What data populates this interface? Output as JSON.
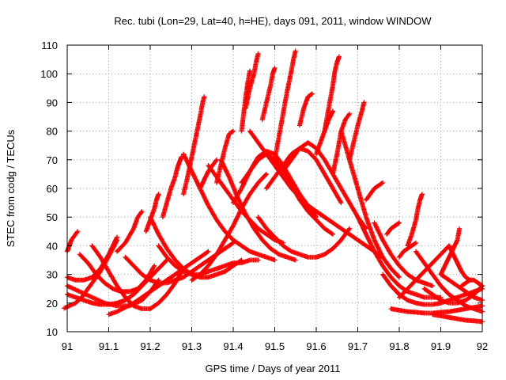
{
  "chart_data": {
    "type": "scatter",
    "title": "Rec. tubi (Lon=29, Lat=40, h=HE), days 091, 2011, window WINDOW",
    "xlabel": "GPS time / Days of year 2011",
    "ylabel": "STEC from codg / TECUs",
    "xlim": [
      91,
      92
    ],
    "ylim": [
      10,
      110
    ],
    "xticks": [
      91,
      91.1,
      91.2,
      91.3,
      91.4,
      91.5,
      91.6,
      91.7,
      91.8,
      91.9,
      92
    ],
    "xtick_labels": [
      "91",
      "91.1",
      "91.2",
      "91.3",
      "91.4",
      "91.5",
      "91.6",
      "91.7",
      "91.8",
      "91.9",
      "92"
    ],
    "yticks": [
      10,
      20,
      30,
      40,
      50,
      60,
      70,
      80,
      90,
      100,
      110
    ],
    "ytick_labels": [
      "10",
      "20",
      "30",
      "40",
      "50",
      "60",
      "70",
      "80",
      "90",
      "100",
      "110"
    ],
    "grid": true,
    "legend": "none",
    "marker": "plus",
    "color": "#ff0000",
    "series": [
      {
        "x": [
          90.99,
          91.005,
          91.02,
          91.035,
          91.05,
          91.065,
          91.08,
          91.095,
          91.11,
          91.12
        ],
        "y": [
          18,
          19,
          20,
          22,
          25,
          28,
          31,
          35,
          39,
          42
        ]
      },
      {
        "x": [
          91.0,
          91.005,
          91.01,
          91.015,
          91.02,
          91.025
        ],
        "y": [
          38,
          40,
          42,
          43,
          44,
          45
        ]
      },
      {
        "x": [
          91.0,
          91.02,
          91.04,
          91.06,
          91.08,
          91.1,
          91.12,
          91.14,
          91.16,
          91.18,
          91.2,
          91.22,
          91.24
        ],
        "y": [
          23,
          22,
          21,
          20,
          19.5,
          19.5,
          20,
          21,
          23,
          26,
          29,
          32,
          35
        ]
      },
      {
        "x": [
          91.0,
          91.02,
          91.04,
          91.06,
          91.08,
          91.1,
          91.12
        ],
        "y": [
          29,
          28,
          28,
          29,
          32,
          37,
          43
        ]
      },
      {
        "x": [
          91.03,
          91.05,
          91.07,
          91.09,
          91.11,
          91.13,
          91.15,
          91.17,
          91.19,
          91.21
        ],
        "y": [
          37,
          34,
          30,
          27,
          25,
          24,
          24,
          25,
          28,
          33
        ]
      },
      {
        "x": [
          91.0,
          91.03,
          91.06,
          91.09,
          91.12,
          91.15,
          91.18,
          91.2,
          91.22
        ],
        "y": [
          26,
          24,
          22,
          20,
          19,
          19,
          21,
          24,
          28
        ]
      },
      {
        "x": [
          91.06,
          91.08,
          91.1,
          91.12,
          91.14,
          91.16,
          91.18,
          91.2,
          91.22,
          91.24,
          91.26,
          91.28
        ],
        "y": [
          40,
          36,
          31,
          26,
          22,
          19,
          18,
          18,
          20,
          23,
          27,
          32
        ]
      },
      {
        "x": [
          91.1,
          91.12,
          91.14,
          91.16,
          91.18,
          91.2,
          91.22,
          91.24,
          91.26,
          91.28,
          91.3,
          91.32,
          91.34
        ],
        "y": [
          16,
          17,
          18.5,
          20,
          22,
          24,
          26,
          28,
          30,
          32,
          34,
          36,
          38
        ]
      },
      {
        "x": [
          91.12,
          91.14,
          91.16,
          91.17,
          91.18
        ],
        "y": [
          38,
          41,
          46,
          50,
          52
        ]
      },
      {
        "x": [
          91.14,
          91.16,
          91.18,
          91.2,
          91.22,
          91.24,
          91.26,
          91.28,
          91.3,
          91.32,
          91.34,
          91.36,
          91.38,
          91.4
        ],
        "y": [
          36,
          33,
          30,
          28,
          27,
          27,
          28,
          29,
          31,
          33,
          35,
          37,
          39,
          41
        ]
      },
      {
        "x": [
          91.19,
          91.2,
          91.21,
          91.215,
          91.22
        ],
        "y": [
          45,
          49,
          53,
          56,
          58
        ]
      },
      {
        "x": [
          91.2,
          91.22,
          91.24,
          91.26,
          91.28,
          91.3,
          91.32,
          91.34,
          91.36,
          91.38,
          91.4,
          91.42
        ],
        "y": [
          50,
          44,
          39,
          35,
          32,
          30,
          29,
          29,
          30,
          31,
          33,
          35
        ]
      },
      {
        "x": [
          91.23,
          91.24,
          91.25,
          91.26,
          91.265,
          91.27,
          91.275
        ],
        "y": [
          50,
          55,
          60,
          64,
          67,
          69,
          71
        ]
      },
      {
        "x": [
          91.22,
          91.24,
          91.26,
          91.28,
          91.3,
          91.32,
          91.34,
          91.36,
          91.38,
          91.4,
          91.42,
          91.44,
          91.46
        ],
        "y": [
          40,
          36,
          33,
          31,
          30,
          30,
          31,
          32,
          33,
          34,
          34,
          35,
          35
        ]
      },
      {
        "x": [
          91.28,
          91.29,
          91.3,
          91.31,
          91.32,
          91.325,
          91.33
        ],
        "y": [
          58,
          64,
          71,
          78,
          85,
          89,
          92
        ]
      },
      {
        "x": [
          91.28,
          91.3,
          91.32,
          91.34,
          91.36,
          91.38,
          91.4,
          91.42,
          91.44,
          91.46,
          91.48,
          91.5
        ],
        "y": [
          72,
          66,
          60,
          54,
          49,
          45,
          42,
          40,
          38,
          37,
          36,
          35
        ]
      },
      {
        "x": [
          91.3,
          91.32,
          91.34,
          91.36,
          91.38,
          91.4,
          91.42,
          91.44,
          91.46,
          91.48
        ],
        "y": [
          28,
          30,
          33,
          37,
          42,
          47,
          53,
          58,
          62,
          65
        ]
      },
      {
        "x": [
          91.32,
          91.33,
          91.34,
          91.35,
          91.36
        ],
        "y": [
          60,
          63,
          66,
          68,
          70
        ]
      },
      {
        "x": [
          91.34,
          91.36,
          91.38,
          91.4,
          91.42,
          91.44,
          91.46,
          91.48,
          91.5,
          91.52
        ],
        "y": [
          68,
          64,
          60,
          56,
          52,
          49,
          46,
          44,
          42,
          41
        ]
      },
      {
        "x": [
          91.36,
          91.37,
          91.38,
          91.39,
          91.4
        ],
        "y": [
          62,
          68,
          74,
          79,
          80
        ]
      },
      {
        "x": [
          91.37,
          91.39,
          91.41,
          91.43,
          91.45,
          91.47,
          91.49,
          91.51,
          91.53,
          91.55
        ],
        "y": [
          70,
          64,
          57,
          51,
          46,
          42,
          39,
          37,
          36,
          35
        ]
      },
      {
        "x": [
          91.42,
          91.425,
          91.43,
          91.435,
          91.44
        ],
        "y": [
          80,
          86,
          92,
          97,
          101
        ]
      },
      {
        "x": [
          91.4,
          91.42,
          91.44,
          91.46,
          91.48,
          91.5,
          91.52,
          91.54,
          91.56,
          91.58,
          91.6
        ],
        "y": [
          55,
          60,
          66,
          71,
          73,
          72,
          68,
          63,
          58,
          54,
          50
        ]
      },
      {
        "x": [
          91.43,
          91.44,
          91.45,
          91.455,
          91.46
        ],
        "y": [
          88,
          95,
          100,
          104,
          107
        ]
      },
      {
        "x": [
          91.42,
          91.44,
          91.46,
          91.48,
          91.5,
          91.52,
          91.54,
          91.56,
          91.58,
          91.6,
          91.62,
          91.64
        ],
        "y": [
          62,
          66,
          70,
          72,
          70,
          66,
          61,
          56,
          52,
          49,
          46,
          44
        ]
      },
      {
        "x": [
          91.44,
          91.46,
          91.48,
          91.5,
          91.52,
          91.54,
          91.56,
          91.58,
          91.6,
          91.62
        ],
        "y": [
          80,
          76,
          72,
          68,
          64,
          60,
          57,
          54,
          52,
          50
        ]
      },
      {
        "x": [
          91.47,
          91.48,
          91.49,
          91.495,
          91.5
        ],
        "y": [
          84,
          90,
          96,
          100,
          102
        ]
      },
      {
        "x": [
          91.46,
          91.48,
          91.5,
          91.52,
          91.54,
          91.56,
          91.58,
          91.6,
          91.62,
          91.64,
          91.66,
          91.68
        ],
        "y": [
          50,
          46,
          43,
          40,
          38,
          37,
          36,
          36,
          37,
          39,
          42,
          46
        ]
      },
      {
        "x": [
          91.5,
          91.51,
          91.52,
          91.53,
          91.54,
          91.545,
          91.55
        ],
        "y": [
          70,
          78,
          86,
          94,
          101,
          105,
          108
        ]
      },
      {
        "x": [
          91.48,
          91.5,
          91.52,
          91.54,
          91.56,
          91.58,
          91.6,
          91.62,
          91.64,
          91.66
        ],
        "y": [
          60,
          64,
          68,
          72,
          74,
          73,
          70,
          65,
          60,
          55
        ]
      },
      {
        "x": [
          91.56,
          91.57,
          91.58,
          91.59
        ],
        "y": [
          82,
          88,
          92,
          93
        ]
      },
      {
        "x": [
          91.52,
          91.54,
          91.56,
          91.58,
          91.6,
          91.62,
          91.64,
          91.66,
          91.68,
          91.7,
          91.72
        ],
        "y": [
          66,
          70,
          74,
          76,
          74,
          70,
          65,
          60,
          55,
          50,
          46
        ]
      },
      {
        "x": [
          91.6,
          91.61,
          91.62,
          91.63,
          91.64
        ],
        "y": [
          72,
          76,
          80,
          84,
          87
        ]
      },
      {
        "x": [
          91.56,
          91.58,
          91.6,
          91.62,
          91.64,
          91.66,
          91.68,
          91.7,
          91.72,
          91.74,
          91.76
        ],
        "y": [
          56,
          54,
          52,
          50,
          48,
          46,
          44,
          42,
          40,
          38,
          36
        ]
      },
      {
        "x": [
          91.62,
          91.63,
          91.64,
          91.645,
          91.65,
          91.655
        ],
        "y": [
          80,
          88,
          96,
          101,
          104,
          106
        ]
      },
      {
        "x": [
          91.64,
          91.65,
          91.66,
          91.67,
          91.68
        ],
        "y": [
          65,
          72,
          80,
          84,
          86
        ]
      },
      {
        "x": [
          91.68,
          91.69,
          91.7,
          91.71,
          91.715
        ],
        "y": [
          70,
          76,
          82,
          87,
          90
        ]
      },
      {
        "x": [
          91.66,
          91.68,
          91.7,
          91.72,
          91.74,
          91.76,
          91.78,
          91.8
        ],
        "y": [
          80,
          70,
          60,
          50,
          42,
          36,
          32,
          29
        ]
      },
      {
        "x": [
          91.72,
          91.73,
          91.74,
          91.75,
          91.76
        ],
        "y": [
          56,
          58,
          60,
          61,
          62
        ]
      },
      {
        "x": [
          91.7,
          91.72,
          91.74,
          91.76,
          91.78,
          91.8,
          91.82,
          91.84,
          91.86,
          91.88,
          91.9
        ],
        "y": [
          50,
          44,
          38,
          33,
          29,
          26,
          24,
          23,
          22,
          22,
          22
        ]
      },
      {
        "x": [
          91.74,
          91.76,
          91.78,
          91.8,
          91.82,
          91.84,
          91.86,
          91.88
        ],
        "y": [
          48,
          42,
          37,
          33,
          30,
          28,
          27,
          26
        ]
      },
      {
        "x": [
          91.77,
          91.78,
          91.79,
          91.8
        ],
        "y": [
          44,
          46,
          47,
          48
        ]
      },
      {
        "x": [
          91.76,
          91.78,
          91.8,
          91.82,
          91.84,
          91.86,
          91.88,
          91.9,
          91.92,
          91.94,
          91.96,
          91.98,
          92.0
        ],
        "y": [
          30,
          26,
          23,
          21,
          20,
          19.5,
          19.5,
          20,
          21,
          22,
          23,
          24,
          25
        ]
      },
      {
        "x": [
          91.8,
          91.81,
          91.82,
          91.83,
          91.84
        ],
        "y": [
          36,
          38,
          39,
          40,
          41
        ]
      },
      {
        "x": [
          91.82,
          91.83,
          91.84,
          91.845,
          91.85,
          91.855
        ],
        "y": [
          40,
          44,
          49,
          53,
          56,
          58
        ]
      },
      {
        "x": [
          91.78,
          91.8,
          91.82,
          91.84,
          91.86,
          91.88,
          91.9,
          91.92,
          91.94,
          91.96,
          91.98,
          92.0
        ],
        "y": [
          18,
          17.5,
          17,
          16.8,
          16.5,
          16.5,
          16.8,
          17,
          17.5,
          18,
          18.5,
          19
        ]
      },
      {
        "x": [
          91.8,
          91.82,
          91.84,
          91.86,
          91.88,
          91.9,
          91.92
        ],
        "y": [
          22,
          25,
          28,
          31,
          34,
          37,
          40
        ]
      },
      {
        "x": [
          91.84,
          91.86,
          91.88,
          91.9,
          91.92,
          91.94,
          91.96,
          91.98,
          92.0
        ],
        "y": [
          38,
          34,
          30,
          26,
          23,
          21,
          19,
          18,
          17
        ]
      },
      {
        "x": [
          91.86,
          91.88,
          91.9,
          91.92,
          91.94,
          91.96,
          91.98,
          92.0
        ],
        "y": [
          25,
          23,
          21,
          20,
          20,
          21,
          23,
          26
        ]
      },
      {
        "x": [
          91.9,
          91.91,
          91.92,
          91.93,
          91.94,
          91.945
        ],
        "y": [
          30,
          33,
          36,
          39,
          42,
          46
        ]
      },
      {
        "x": [
          91.88,
          91.9,
          91.92,
          91.94,
          91.96,
          91.98,
          92.0
        ],
        "y": [
          16,
          15.5,
          15,
          14.5,
          14,
          13.8,
          13.5
        ]
      },
      {
        "x": [
          91.92,
          91.93,
          91.94,
          91.95,
          91.96,
          91.97
        ],
        "y": [
          40,
          37,
          34,
          31,
          29,
          28
        ]
      },
      {
        "x": [
          91.9,
          91.92,
          91.94,
          91.96,
          91.98,
          92.0
        ],
        "y": [
          30,
          28,
          26,
          24,
          22,
          21
        ]
      },
      {
        "x": [
          91.95,
          91.96,
          91.97,
          91.98,
          91.99,
          92.0
        ],
        "y": [
          26,
          27,
          28,
          28,
          27,
          26
        ]
      }
    ]
  }
}
